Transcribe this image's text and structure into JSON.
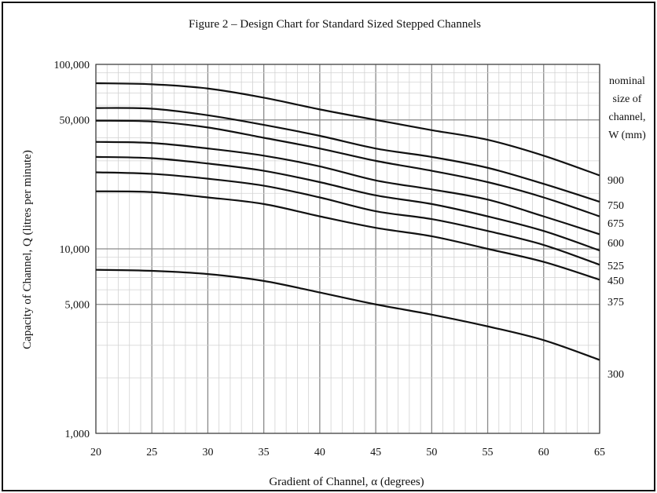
{
  "chart_data": {
    "type": "line",
    "title": "Figure 2 – Design Chart for Standard Sized Stepped Channels",
    "xlabel": "Gradient of Channel, α (degrees)",
    "ylabel": "Capacity of Channel, Q (litres per minute)",
    "xlim": [
      20,
      65
    ],
    "ylim": [
      1000,
      100000
    ],
    "y_scale": "log",
    "x_ticks": [
      "20",
      "25",
      "30",
      "35",
      "40",
      "45",
      "50",
      "55",
      "60",
      "65"
    ],
    "y_ticks": [
      {
        "value": 1000,
        "label": "1,000"
      },
      {
        "value": 5000,
        "label": "5,000"
      },
      {
        "value": 10000,
        "label": "10,000"
      },
      {
        "value": 50000,
        "label": "50,000"
      },
      {
        "value": 100000,
        "label": "100,000"
      }
    ],
    "grid": true,
    "legend_title": [
      "nominal",
      "size of",
      "channel,",
      "W (mm)"
    ],
    "x": [
      20,
      25,
      30,
      35,
      40,
      45,
      50,
      55,
      60,
      65
    ],
    "series": [
      {
        "name": "900",
        "values": [
          79000,
          78000,
          74000,
          66000,
          57000,
          50000,
          44000,
          39000,
          32000,
          25000
        ]
      },
      {
        "name": "750",
        "values": [
          58000,
          57500,
          53000,
          47000,
          41000,
          35000,
          31500,
          27500,
          22500,
          18000
        ]
      },
      {
        "name": "675",
        "values": [
          49500,
          49000,
          45500,
          40000,
          35000,
          30000,
          26500,
          23000,
          19000,
          15000
        ]
      },
      {
        "name": "600",
        "values": [
          38000,
          37500,
          35000,
          32000,
          28000,
          23500,
          21000,
          18500,
          15000,
          12000
        ]
      },
      {
        "name": "525",
        "values": [
          31500,
          31000,
          29000,
          26500,
          23000,
          19500,
          17500,
          15000,
          12500,
          9800
        ]
      },
      {
        "name": "450",
        "values": [
          26000,
          25500,
          24000,
          22000,
          19000,
          16000,
          14500,
          12500,
          10500,
          8200
        ]
      },
      {
        "name": "375",
        "values": [
          20500,
          20300,
          19000,
          17500,
          15000,
          13000,
          11700,
          10000,
          8500,
          6800
        ]
      },
      {
        "name": "300",
        "values": [
          7700,
          7600,
          7300,
          6700,
          5800,
          5000,
          4400,
          3800,
          3200,
          2500
        ]
      }
    ]
  }
}
